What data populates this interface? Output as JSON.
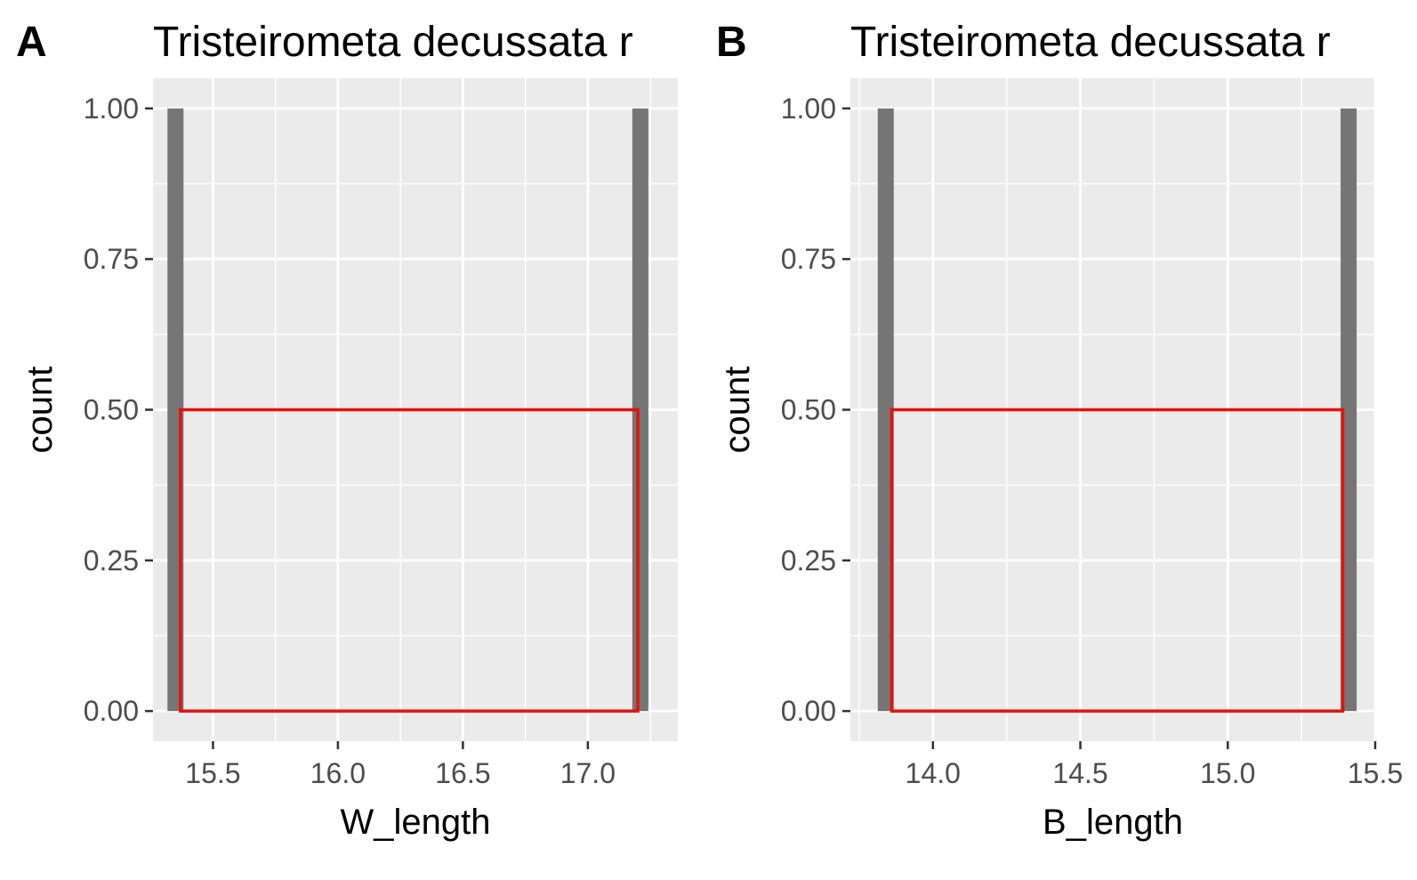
{
  "chart_data": [
    {
      "type": "bar",
      "tag": "A",
      "title": "Tristeirometa decussata r",
      "xlabel": "W_length",
      "ylabel": "count",
      "xlim": [
        15.26,
        17.36
      ],
      "ylim": [
        -0.05,
        1.05
      ],
      "x_ticks": [
        15.5,
        16.0,
        16.5,
        17.0
      ],
      "x_tick_labels": [
        "15.5",
        "16.0",
        "16.5",
        "17.0"
      ],
      "y_ticks": [
        0,
        0.25,
        0.5,
        0.75,
        1.0
      ],
      "y_tick_labels": [
        "0.00",
        "0.25",
        "0.50",
        "0.75",
        "1.00"
      ],
      "grid": true,
      "bar_color": "#757575",
      "bars": [
        {
          "x": 15.35,
          "count": 1
        },
        {
          "x": 17.21,
          "count": 1
        }
      ],
      "highlight_rect": {
        "x0": 15.37,
        "x1": 17.2,
        "y0": 0,
        "y1": 0.5,
        "color": "#e3120b"
      }
    },
    {
      "type": "bar",
      "tag": "B",
      "title": "Tristeirometa decussata r",
      "xlabel": "B_length",
      "ylabel": "count",
      "xlim": [
        13.72,
        15.5
      ],
      "ylim": [
        -0.05,
        1.05
      ],
      "x_ticks": [
        14.0,
        14.5,
        15.0,
        15.5
      ],
      "x_tick_labels": [
        "14.0",
        "14.5",
        "15.0",
        "15.5"
      ],
      "y_ticks": [
        0,
        0.25,
        0.5,
        0.75,
        1.0
      ],
      "y_tick_labels": [
        "0.00",
        "0.25",
        "0.50",
        "0.75",
        "1.00"
      ],
      "grid": true,
      "bar_color": "#757575",
      "bars": [
        {
          "x": 13.84,
          "count": 1
        },
        {
          "x": 15.41,
          "count": 1
        }
      ],
      "highlight_rect": {
        "x0": 13.86,
        "x1": 15.39,
        "y0": 0,
        "y1": 0.5,
        "color": "#e3120b"
      }
    }
  ]
}
